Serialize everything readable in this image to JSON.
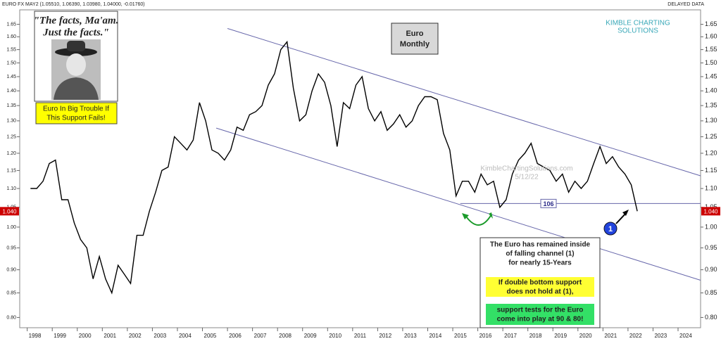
{
  "chart_data": {
    "type": "line",
    "header": "EURO FX MAY2 (1.05510, 1.06390, 1.03980, 1.04000, -0.01760)",
    "header_right": "DELAYED DATA",
    "title": [
      "Euro",
      "Monthly"
    ],
    "logo": [
      "KIMBLE CHARTING",
      "SOLUTIONS"
    ],
    "watermark": [
      "KimbleChartingSolutions.com",
      "5/12/22"
    ],
    "quote": [
      "\"The facts, Ma'am.",
      "Just the facts.\""
    ],
    "warning": [
      "Euro In Big Trouble If",
      "This Support Fails!"
    ],
    "note": [
      "The Euro has remained inside",
      "of falling channel (1)",
      "for nearly 15-Years"
    ],
    "note_yellow": [
      "If double bottom support",
      "does not hold at (1),"
    ],
    "note_green": [
      "support tests for the Euro",
      "come into play at 90 & 80!"
    ],
    "marker": "1",
    "color": "#000000",
    "log_scale": true,
    "x": [
      1998.13,
      1998.38,
      1998.63,
      1998.88,
      1999.13,
      1999.38,
      1999.63,
      1999.88,
      2000.13,
      2000.38,
      2000.63,
      2000.88,
      2001.13,
      2001.38,
      2001.63,
      2001.88,
      2002.13,
      2002.38,
      2002.63,
      2002.88,
      2003.13,
      2003.38,
      2003.63,
      2003.88,
      2004.13,
      2004.38,
      2004.63,
      2004.88,
      2005.13,
      2005.38,
      2005.63,
      2005.88,
      2006.13,
      2006.38,
      2006.63,
      2006.88,
      2007.13,
      2007.38,
      2007.63,
      2007.88,
      2008.13,
      2008.38,
      2008.63,
      2008.88,
      2009.13,
      2009.38,
      2009.63,
      2009.88,
      2010.13,
      2010.38,
      2010.63,
      2010.88,
      2011.13,
      2011.38,
      2011.63,
      2011.88,
      2012.13,
      2012.38,
      2012.63,
      2012.88,
      2013.13,
      2013.38,
      2013.63,
      2013.88,
      2014.13,
      2014.38,
      2014.63,
      2014.88,
      2015.13,
      2015.38,
      2015.63,
      2015.88,
      2016.13,
      2016.38,
      2016.63,
      2016.88,
      2017.13,
      2017.38,
      2017.63,
      2017.88,
      2018.13,
      2018.38,
      2018.63,
      2018.88,
      2019.13,
      2019.38,
      2019.63,
      2019.88,
      2020.13,
      2020.38,
      2020.63,
      2020.88,
      2021.13,
      2021.38,
      2021.63,
      2021.88,
      2022.13,
      2022.37
    ],
    "values": [
      1.1,
      1.1,
      1.12,
      1.17,
      1.18,
      1.07,
      1.07,
      1.01,
      0.97,
      0.95,
      0.88,
      0.93,
      0.88,
      0.85,
      0.91,
      0.89,
      0.87,
      0.98,
      0.98,
      1.04,
      1.09,
      1.15,
      1.16,
      1.25,
      1.23,
      1.21,
      1.24,
      1.36,
      1.3,
      1.21,
      1.2,
      1.18,
      1.21,
      1.28,
      1.27,
      1.32,
      1.33,
      1.35,
      1.42,
      1.46,
      1.55,
      1.58,
      1.41,
      1.3,
      1.32,
      1.4,
      1.46,
      1.43,
      1.35,
      1.22,
      1.36,
      1.34,
      1.42,
      1.45,
      1.34,
      1.3,
      1.33,
      1.27,
      1.29,
      1.32,
      1.28,
      1.3,
      1.35,
      1.38,
      1.38,
      1.37,
      1.26,
      1.21,
      1.08,
      1.12,
      1.12,
      1.09,
      1.14,
      1.11,
      1.12,
      1.05,
      1.07,
      1.14,
      1.18,
      1.2,
      1.23,
      1.17,
      1.16,
      1.15,
      1.12,
      1.14,
      1.09,
      1.12,
      1.1,
      1.12,
      1.17,
      1.22,
      1.17,
      1.19,
      1.16,
      1.14,
      1.11,
      1.04
    ],
    "xlim": [
      1997.7,
      2024.9
    ],
    "ylim": [
      0.78,
      1.71
    ],
    "xticks": [
      1998,
      1999,
      2000,
      2001,
      2002,
      2003,
      2004,
      2005,
      2006,
      2007,
      2008,
      2009,
      2010,
      2011,
      2012,
      2013,
      2014,
      2015,
      2016,
      2017,
      2018,
      2019,
      2020,
      2021,
      2022,
      2023,
      2024
    ],
    "yticks": [
      1.65,
      {
        "value": 1.6,
        "label": "1.60"
      },
      1.55,
      {
        "value": 1.5,
        "label": "1.50"
      },
      1.45,
      {
        "value": 1.4,
        "label": "1.40"
      },
      1.35,
      {
        "value": 1.3,
        "label": "1.30"
      },
      1.25,
      {
        "value": 1.2,
        "label": "1.20"
      },
      1.15,
      {
        "value": 1.1,
        "label": "1.10"
      },
      1.05,
      {
        "value": 1,
        "label": "1.00"
      },
      0.95,
      {
        "value": 0.9,
        "label": "0.90"
      },
      0.85,
      {
        "value": 0.8,
        "label": "0.80"
      }
    ],
    "trendlines": [
      {
        "x": [
          2006.0,
          2024.9
        ],
        "y": [
          1.633,
          1.135
        ]
      },
      {
        "x": [
          2005.55,
          2024.9
        ],
        "y": [
          1.277,
          0.877
        ]
      }
    ],
    "support": {
      "value": 1.06,
      "label": "106",
      "x": [
        2015.3,
        2024.9
      ]
    },
    "last_price": {
      "value": 1.04,
      "label": "1.040"
    }
  }
}
